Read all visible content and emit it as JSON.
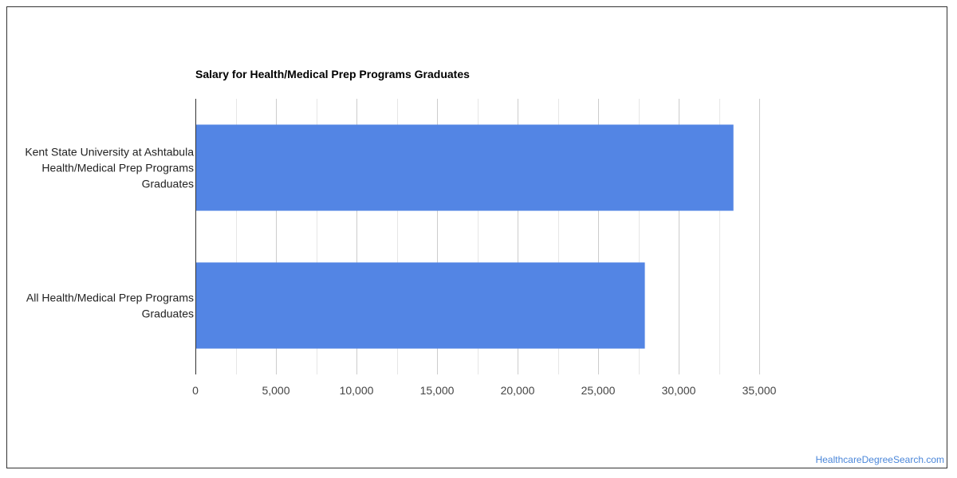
{
  "chart_data": {
    "type": "bar",
    "orientation": "horizontal",
    "title": "Salary for Health/Medical Prep Programs Graduates",
    "categories": [
      [
        "Kent State University at Ashtabula",
        "Health/Medical Prep Programs",
        "Graduates"
      ],
      [
        "All Health/Medical Prep Programs",
        "Graduates"
      ]
    ],
    "values": [
      33400,
      27900
    ],
    "xlim": [
      0,
      35000
    ],
    "ticks": [
      "0",
      "5,000",
      "10,000",
      "15,000",
      "20,000",
      "25,000",
      "30,000",
      "35,000"
    ],
    "tick_values": [
      0,
      5000,
      10000,
      15000,
      20000,
      25000,
      30000,
      35000
    ],
    "minor_gridlines": true,
    "bar_color": "#5385e4",
    "gridline_color": "#cccccc",
    "minor_gridline_color": "#e6e6e6"
  },
  "watermark": "HealthcareDegreeSearch.com"
}
